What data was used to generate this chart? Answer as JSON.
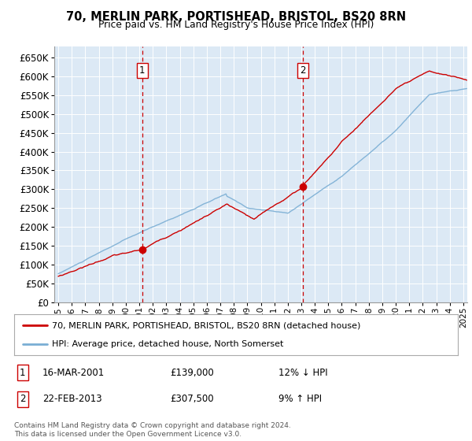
{
  "title": "70, MERLIN PARK, PORTISHEAD, BRISTOL, BS20 8RN",
  "subtitle": "Price paid vs. HM Land Registry's House Price Index (HPI)",
  "legend_line1": "70, MERLIN PARK, PORTISHEAD, BRISTOL, BS20 8RN (detached house)",
  "legend_line2": "HPI: Average price, detached house, North Somerset",
  "annotation1_label": "1",
  "annotation1_date": "16-MAR-2001",
  "annotation1_price": "£139,000",
  "annotation1_hpi": "12% ↓ HPI",
  "annotation2_label": "2",
  "annotation2_date": "22-FEB-2013",
  "annotation2_price": "£307,500",
  "annotation2_hpi": "9% ↑ HPI",
  "footer": "Contains HM Land Registry data © Crown copyright and database right 2024.\nThis data is licensed under the Open Government Licence v3.0.",
  "red_color": "#cc0000",
  "blue_color": "#7aaed4",
  "background_color": "#dce9f5",
  "vline_color": "#cc0000",
  "marker1_x": 2001.21,
  "marker1_y": 139000,
  "marker2_x": 2013.13,
  "marker2_y": 307500,
  "ylim": [
    0,
    680000
  ],
  "xlim_start": 1994.7,
  "xlim_end": 2025.3,
  "ytick_step": 50000
}
